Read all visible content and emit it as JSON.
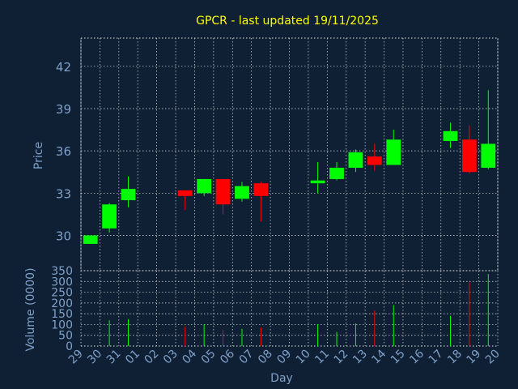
{
  "chart_data": {
    "type": "candlestick",
    "title": "GPCR - last updated 19/11/2025",
    "xlabel": "Day",
    "price_panel": {
      "ylabel": "Price",
      "ylim": [
        27.5,
        44
      ],
      "yticks": [
        30,
        33,
        36,
        39,
        42
      ]
    },
    "volume_panel": {
      "ylabel": "Volume (0000)",
      "ylim": [
        0,
        350
      ],
      "yticks": [
        0,
        50,
        100,
        150,
        200,
        250,
        300,
        350
      ]
    },
    "x_ticks": [
      "29",
      "30",
      "31",
      "01",
      "02",
      "03",
      "04",
      "05",
      "06",
      "07",
      "08",
      "09",
      "10",
      "11",
      "12",
      "13",
      "14",
      "15",
      "16",
      "17",
      "18",
      "19",
      "20"
    ],
    "candles": [
      {
        "day": "29",
        "open": 29.4,
        "high": 30.0,
        "low": 29.4,
        "close": 30.0,
        "volume": 0
      },
      {
        "day": "30",
        "open": 30.5,
        "high": 32.3,
        "low": 30.2,
        "close": 32.2,
        "volume": 120
      },
      {
        "day": "31",
        "open": 32.5,
        "high": 34.2,
        "low": 32.0,
        "close": 33.3,
        "volume": 125
      },
      {
        "day": "03",
        "open": 33.2,
        "high": 33.2,
        "low": 31.8,
        "close": 32.8,
        "volume": 90
      },
      {
        "day": "04",
        "open": 33.0,
        "high": 34.0,
        "low": 32.8,
        "close": 34.0,
        "volume": 100
      },
      {
        "day": "05",
        "open": 34.0,
        "high": 34.0,
        "low": 31.5,
        "close": 32.2,
        "volume": 75
      },
      {
        "day": "06",
        "open": 32.6,
        "high": 33.8,
        "low": 32.4,
        "close": 33.5,
        "volume": 80
      },
      {
        "day": "07",
        "open": 33.7,
        "high": 33.8,
        "low": 31.0,
        "close": 32.8,
        "volume": 85
      },
      {
        "day": "10",
        "open": 33.7,
        "high": 35.2,
        "low": 33.0,
        "close": 33.9,
        "volume": 100
      },
      {
        "day": "11",
        "open": 34.0,
        "high": 35.2,
        "low": 33.9,
        "close": 34.8,
        "volume": 65
      },
      {
        "day": "12",
        "open": 34.8,
        "high": 36.1,
        "low": 34.5,
        "close": 35.9,
        "volume": 105
      },
      {
        "day": "13",
        "open": 35.6,
        "high": 36.5,
        "low": 34.6,
        "close": 35.0,
        "volume": 165
      },
      {
        "day": "14",
        "open": 35.0,
        "high": 37.5,
        "low": 35.0,
        "close": 36.8,
        "volume": 190
      },
      {
        "day": "17",
        "open": 36.7,
        "high": 38.0,
        "low": 36.2,
        "close": 37.4,
        "volume": 140
      },
      {
        "day": "18",
        "open": 36.8,
        "high": 37.8,
        "low": 34.4,
        "close": 34.5,
        "volume": 295
      },
      {
        "day": "19",
        "open": 34.8,
        "high": 40.3,
        "low": 34.7,
        "close": 36.5,
        "volume": 335
      }
    ],
    "colors": {
      "background": "#0f2035",
      "up": "#00ff00",
      "down": "#ff0000",
      "grid": "#e0e0e0",
      "axis_text": "#7fa0c8",
      "title": "#ffff00"
    },
    "grid": true
  }
}
